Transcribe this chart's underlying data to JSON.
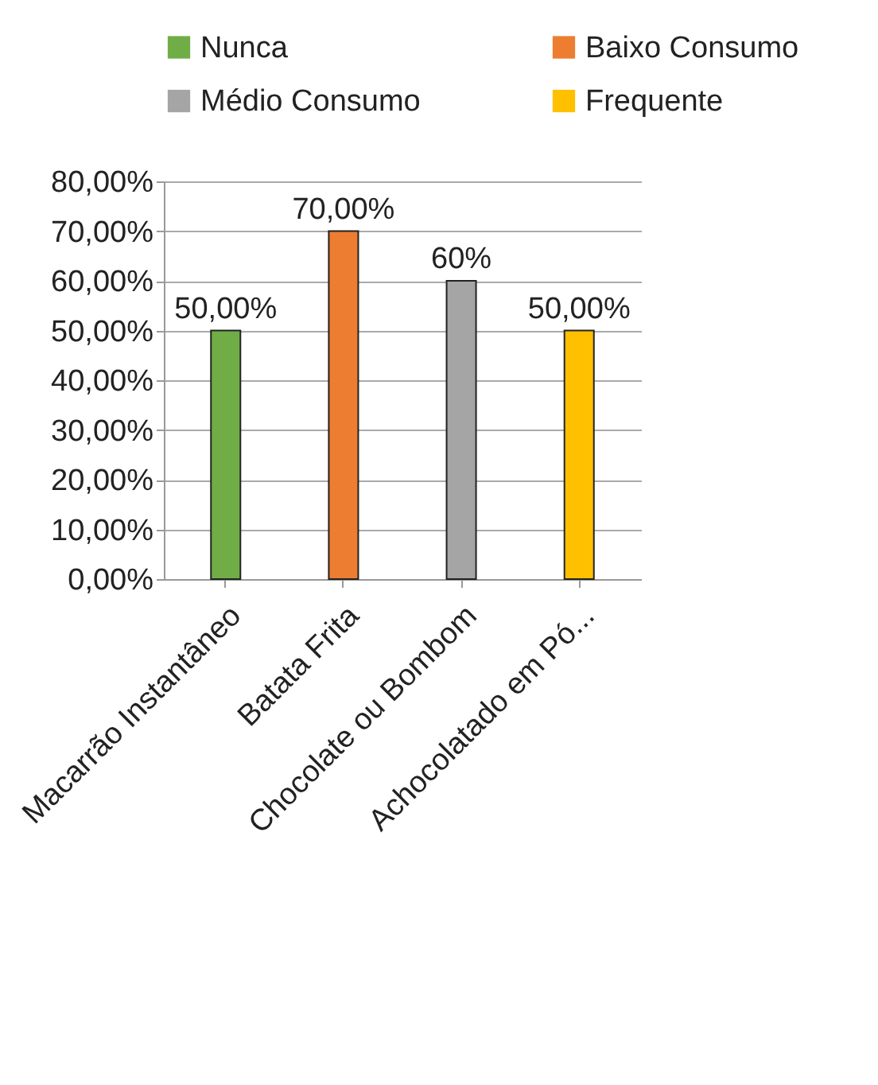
{
  "chart_data": {
    "type": "bar",
    "categories": [
      "Macarrão Instantâneo",
      "Batata Frita",
      "Chocolate ou Bombom",
      "Achocolatado em Pó..."
    ],
    "series": [
      {
        "name": "Nunca",
        "color": "#70ad47",
        "values": [
          50,
          null,
          null,
          null
        ],
        "value_labels": [
          "50,00%",
          null,
          null,
          null
        ]
      },
      {
        "name": "Baixo Consumo",
        "color": "#ed7d31",
        "values": [
          null,
          70,
          null,
          null
        ],
        "value_labels": [
          null,
          "70,00%",
          null,
          null
        ]
      },
      {
        "name": "Médio Consumo",
        "color": "#a5a5a5",
        "values": [
          null,
          null,
          60,
          null
        ],
        "value_labels": [
          null,
          null,
          "60%",
          null
        ]
      },
      {
        "name": "Frequente",
        "color": "#ffc000",
        "values": [
          null,
          null,
          null,
          50
        ],
        "value_labels": [
          null,
          null,
          null,
          "50,00%"
        ]
      }
    ],
    "ylim": [
      0,
      80
    ],
    "yticks": [
      {
        "value": 0,
        "label": "0,00%"
      },
      {
        "value": 10,
        "label": "10,00%"
      },
      {
        "value": 20,
        "label": "20,00%"
      },
      {
        "value": 30,
        "label": "30,00%"
      },
      {
        "value": 40,
        "label": "40,00%"
      },
      {
        "value": 50,
        "label": "50,00%"
      },
      {
        "value": 60,
        "label": "60,00%"
      },
      {
        "value": 70,
        "label": "70,00%"
      },
      {
        "value": 80,
        "label": "80,00%"
      }
    ],
    "grid": "y",
    "legend": "top"
  }
}
